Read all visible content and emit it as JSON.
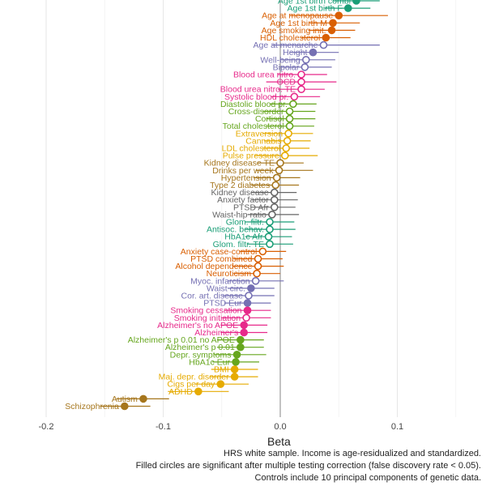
{
  "chart_data": {
    "type": "forest",
    "xlabel": "Beta",
    "xlim": [
      -0.2,
      0.15
    ],
    "xticks": [
      -0.2,
      -0.1,
      0.0,
      0.1
    ],
    "xtick_labels": [
      "-0.2",
      "-0.1",
      "0.0",
      "0.1"
    ],
    "grid": true,
    "colors": {
      "teal": "#1b9e77",
      "orange": "#d95f02",
      "purple": "#7570b3",
      "pink": "#e7298a",
      "green": "#66a61e",
      "yellow": "#e6ab02",
      "brown": "#a6761d",
      "gray": "#666666"
    },
    "points": [
      {
        "label": "Age 1st birth combi",
        "beta": 0.065,
        "lo": 0.045,
        "hi": 0.085,
        "color": "teal",
        "significant": true
      },
      {
        "label": "Age 1st birth F",
        "beta": 0.058,
        "lo": 0.038,
        "hi": 0.077,
        "color": "teal",
        "significant": true
      },
      {
        "label": "Age at menopause",
        "beta": 0.05,
        "lo": 0.008,
        "hi": 0.092,
        "color": "orange",
        "significant": true
      },
      {
        "label": "Age 1st birth M",
        "beta": 0.045,
        "lo": 0.025,
        "hi": 0.068,
        "color": "orange",
        "significant": true
      },
      {
        "label": "Age smoking init.",
        "beta": 0.044,
        "lo": 0.024,
        "hi": 0.064,
        "color": "orange",
        "significant": true
      },
      {
        "label": "HDL cholesterol",
        "beta": 0.039,
        "lo": 0.018,
        "hi": 0.06,
        "color": "orange",
        "significant": true
      },
      {
        "label": "Age at menarche",
        "beta": 0.037,
        "lo": -0.007,
        "hi": 0.085,
        "color": "purple",
        "significant": false
      },
      {
        "label": "Height",
        "beta": 0.028,
        "lo": 0.008,
        "hi": 0.05,
        "color": "purple",
        "significant": true
      },
      {
        "label": "Well-being",
        "beta": 0.022,
        "lo": 0.0,
        "hi": 0.047,
        "color": "purple",
        "significant": false
      },
      {
        "label": "Bipolar",
        "beta": 0.021,
        "lo": 0.0,
        "hi": 0.044,
        "color": "purple",
        "significant": false
      },
      {
        "label": "Blood urea nitro.",
        "beta": 0.018,
        "lo": -0.002,
        "hi": 0.04,
        "color": "pink",
        "significant": false
      },
      {
        "label": "OCD",
        "beta": 0.018,
        "lo": -0.012,
        "hi": 0.048,
        "color": "pink",
        "significant": false
      },
      {
        "label": "Blood urea nitro. TE",
        "beta": 0.018,
        "lo": -0.002,
        "hi": 0.038,
        "color": "pink",
        "significant": false
      },
      {
        "label": "Systolic blood pr.",
        "beta": 0.012,
        "lo": -0.008,
        "hi": 0.034,
        "color": "pink",
        "significant": false
      },
      {
        "label": "Diastolic blood pr.",
        "beta": 0.011,
        "lo": -0.009,
        "hi": 0.031,
        "color": "green",
        "significant": false
      },
      {
        "label": "Cross-disorder",
        "beta": 0.008,
        "lo": -0.015,
        "hi": 0.03,
        "color": "green",
        "significant": false
      },
      {
        "label": "Cortisol",
        "beta": 0.008,
        "lo": -0.012,
        "hi": 0.03,
        "color": "green",
        "significant": false
      },
      {
        "label": "Total cholesterol",
        "beta": 0.008,
        "lo": -0.012,
        "hi": 0.029,
        "color": "green",
        "significant": false
      },
      {
        "label": "Extraversion",
        "beta": 0.007,
        "lo": -0.015,
        "hi": 0.028,
        "color": "yellow",
        "significant": false
      },
      {
        "label": "Cannabis",
        "beta": 0.006,
        "lo": -0.014,
        "hi": 0.026,
        "color": "yellow",
        "significant": false
      },
      {
        "label": "LDL cholesterol",
        "beta": 0.005,
        "lo": -0.015,
        "hi": 0.025,
        "color": "yellow",
        "significant": false
      },
      {
        "label": "Pulse pressure",
        "beta": 0.004,
        "lo": -0.022,
        "hi": 0.032,
        "color": "yellow",
        "significant": false
      },
      {
        "label": "Kidney disease TE",
        "beta": 0.0,
        "lo": -0.02,
        "hi": 0.02,
        "color": "brown",
        "significant": false
      },
      {
        "label": "Drinks per week",
        "beta": -0.001,
        "lo": -0.021,
        "hi": 0.028,
        "color": "brown",
        "significant": false
      },
      {
        "label": "Hypertension",
        "beta": -0.003,
        "lo": -0.023,
        "hi": 0.017,
        "color": "brown",
        "significant": false
      },
      {
        "label": "Type 2 diabetes",
        "beta": -0.004,
        "lo": -0.025,
        "hi": 0.016,
        "color": "brown",
        "significant": false
      },
      {
        "label": "Kidney disease",
        "beta": -0.005,
        "lo": -0.025,
        "hi": 0.014,
        "color": "gray",
        "significant": false
      },
      {
        "label": "Anxiety factor",
        "beta": -0.005,
        "lo": -0.025,
        "hi": 0.015,
        "color": "gray",
        "significant": false
      },
      {
        "label": "PTSD Afr",
        "beta": -0.005,
        "lo": -0.025,
        "hi": 0.013,
        "color": "gray",
        "significant": false
      },
      {
        "label": "Waist-hip ratio",
        "beta": -0.007,
        "lo": -0.028,
        "hi": 0.016,
        "color": "gray",
        "significant": false
      },
      {
        "label": "Glom. filtr.",
        "beta": -0.009,
        "lo": -0.03,
        "hi": 0.012,
        "color": "teal",
        "significant": false
      },
      {
        "label": "Antisoc. behav.",
        "beta": -0.009,
        "lo": -0.03,
        "hi": 0.013,
        "color": "teal",
        "significant": false
      },
      {
        "label": "HbA1c Afr",
        "beta": -0.01,
        "lo": -0.03,
        "hi": 0.01,
        "color": "teal",
        "significant": false
      },
      {
        "label": "Glom. filtr. TE",
        "beta": -0.009,
        "lo": -0.028,
        "hi": 0.011,
        "color": "teal",
        "significant": false
      },
      {
        "label": "Anxiety case-control",
        "beta": -0.015,
        "lo": -0.035,
        "hi": 0.005,
        "color": "orange",
        "significant": false
      },
      {
        "label": "PTSD combined",
        "beta": -0.019,
        "lo": -0.04,
        "hi": 0.002,
        "color": "orange",
        "significant": false
      },
      {
        "label": "Alcohol dependence",
        "beta": -0.019,
        "lo": -0.041,
        "hi": 0.003,
        "color": "orange",
        "significant": false
      },
      {
        "label": "Neuroticism",
        "beta": -0.02,
        "lo": -0.04,
        "hi": 0.0,
        "color": "orange",
        "significant": false
      },
      {
        "label": "Myoc. infarction",
        "beta": -0.021,
        "lo": -0.045,
        "hi": 0.003,
        "color": "purple",
        "significant": false
      },
      {
        "label": "Waist circ.",
        "beta": -0.025,
        "lo": -0.045,
        "hi": -0.005,
        "color": "purple",
        "significant": true
      },
      {
        "label": "Cor. art. disease",
        "beta": -0.027,
        "lo": -0.049,
        "hi": -0.005,
        "color": "purple",
        "significant": false
      },
      {
        "label": "PTSD Eur",
        "beta": -0.028,
        "lo": -0.048,
        "hi": -0.008,
        "color": "purple",
        "significant": true
      },
      {
        "label": "Smoking cessation",
        "beta": -0.028,
        "lo": -0.048,
        "hi": -0.008,
        "color": "pink",
        "significant": true
      },
      {
        "label": "Smoking initiation",
        "beta": -0.029,
        "lo": -0.05,
        "hi": -0.008,
        "color": "pink",
        "significant": false
      },
      {
        "label": "Alzheimer's no APOE",
        "beta": -0.031,
        "lo": -0.051,
        "hi": -0.011,
        "color": "pink",
        "significant": true
      },
      {
        "label": "Alzheimer's",
        "beta": -0.031,
        "lo": -0.051,
        "hi": -0.011,
        "color": "pink",
        "significant": true
      },
      {
        "label": "Alzheimer's p 0.01 no APOE",
        "beta": -0.034,
        "lo": -0.054,
        "hi": -0.014,
        "color": "green",
        "significant": true
      },
      {
        "label": "Alzheimer's p 0.01",
        "beta": -0.034,
        "lo": -0.054,
        "hi": -0.014,
        "color": "green",
        "significant": true
      },
      {
        "label": "Depr. symptoms",
        "beta": -0.037,
        "lo": -0.057,
        "hi": -0.012,
        "color": "green",
        "significant": true
      },
      {
        "label": "HbA1c Eur",
        "beta": -0.038,
        "lo": -0.058,
        "hi": -0.018,
        "color": "green",
        "significant": true
      },
      {
        "label": "BMI",
        "beta": -0.039,
        "lo": -0.059,
        "hi": -0.019,
        "color": "yellow",
        "significant": true
      },
      {
        "label": "Maj. depr. disorder",
        "beta": -0.039,
        "lo": -0.06,
        "hi": -0.019,
        "color": "yellow",
        "significant": true
      },
      {
        "label": "Cigs per day",
        "beta": -0.051,
        "lo": -0.073,
        "hi": -0.027,
        "color": "yellow",
        "significant": true
      },
      {
        "label": "ADHD",
        "beta": -0.07,
        "lo": -0.096,
        "hi": -0.044,
        "color": "yellow",
        "significant": true
      },
      {
        "label": "Autism",
        "beta": -0.117,
        "lo": -0.14,
        "hi": -0.095,
        "color": "brown",
        "significant": true
      },
      {
        "label": "Schizophrenia",
        "beta": -0.133,
        "lo": -0.154,
        "hi": -0.111,
        "color": "brown",
        "significant": true
      }
    ]
  },
  "captions": {
    "line1": "HRS white sample. Income is age-residualized and standardized.",
    "line2": "Filled circles are significant after multiple testing correction (false discovery rate < 0.05).",
    "line3": "Controls include 10 principal components of genetic data."
  }
}
